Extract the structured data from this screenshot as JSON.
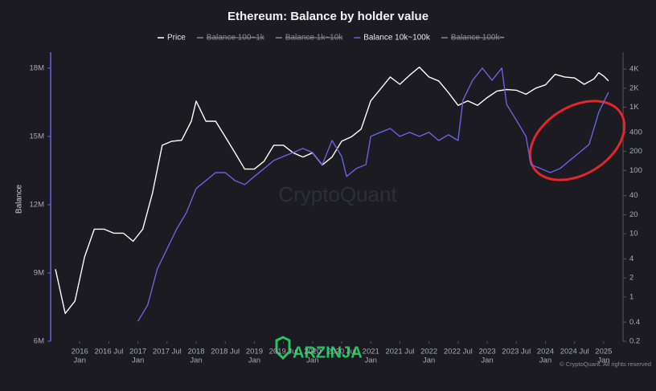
{
  "chart_data": {
    "type": "line",
    "title": "Ethereum: Balance by holder value",
    "y_label": "Balance",
    "watermark": "CryptoQuant",
    "logo_text": "ARZINJA",
    "copyright": "© CryptoQuant. All rights reserved",
    "xlim": [
      "2015-07",
      "2025-05"
    ],
    "xticks": [
      {
        "value": "2016-01",
        "label": "2016",
        "sublabel": "Jan"
      },
      {
        "value": "2016-07",
        "label": "2016 Jul"
      },
      {
        "value": "2017-01",
        "label": "2017",
        "sublabel": "Jan"
      },
      {
        "value": "2017-07",
        "label": "2017 Jul"
      },
      {
        "value": "2018-01",
        "label": "2018",
        "sublabel": "Jan"
      },
      {
        "value": "2018-07",
        "label": "2018 Jul"
      },
      {
        "value": "2019-01",
        "label": "2019",
        "sublabel": "Jan"
      },
      {
        "value": "2019-07",
        "label": "2019 Jul"
      },
      {
        "value": "2020-01",
        "label": "2020",
        "sublabel": "Jan"
      },
      {
        "value": "2020-07",
        "label": "2020 Jul"
      },
      {
        "value": "2021-01",
        "label": "2021",
        "sublabel": "Jan"
      },
      {
        "value": "2021-07",
        "label": "2021 Jul"
      },
      {
        "value": "2022-01",
        "label": "2022",
        "sublabel": "Jan"
      },
      {
        "value": "2022-07",
        "label": "2022 Jul"
      },
      {
        "value": "2023-01",
        "label": "2023",
        "sublabel": "Jan"
      },
      {
        "value": "2023-07",
        "label": "2023 Jul"
      },
      {
        "value": "2024-01",
        "label": "2024",
        "sublabel": "Jan"
      },
      {
        "value": "2024-07",
        "label": "2024 Jul"
      },
      {
        "value": "2025-01",
        "label": "2025",
        "sublabel": "Jan"
      }
    ],
    "ylim": [
      6000000,
      18700000
    ],
    "yticks": [
      {
        "value": 6000000,
        "label": "6M"
      },
      {
        "value": 9000000,
        "label": "9M"
      },
      {
        "value": 12000000,
        "label": "12M"
      },
      {
        "value": 15000000,
        "label": "15M"
      },
      {
        "value": 18000000,
        "label": "18M"
      }
    ],
    "y2lim": [
      0.2,
      7400
    ],
    "y2_log": true,
    "y2ticks": [
      0.2,
      0.4,
      1,
      2,
      4,
      10,
      20,
      40,
      100,
      200,
      400,
      {
        "value": 1000,
        "label": "1K"
      },
      {
        "value": 2000,
        "label": "2K"
      },
      {
        "value": 4000,
        "label": "4K"
      }
    ],
    "series": [
      {
        "name": "Price",
        "color": "#ffffff",
        "axis": "y2",
        "x": [
          "2015-08",
          "2015-10",
          "2015-12",
          "2016-02",
          "2016-04",
          "2016-06",
          "2016-08",
          "2016-10",
          "2016-12",
          "2017-02",
          "2017-04",
          "2017-06",
          "2017-08",
          "2017-10",
          "2017-12",
          "2018-01",
          "2018-03",
          "2018-05",
          "2018-07",
          "2018-09",
          "2018-11",
          "2019-01",
          "2019-03",
          "2019-05",
          "2019-07",
          "2019-09",
          "2019-11",
          "2020-01",
          "2020-03",
          "2020-05",
          "2020-07",
          "2020-09",
          "2020-11",
          "2021-01",
          "2021-03",
          "2021-05",
          "2021-07",
          "2021-09",
          "2021-11",
          "2022-01",
          "2022-03",
          "2022-05",
          "2022-07",
          "2022-09",
          "2022-11",
          "2023-01",
          "2023-03",
          "2023-05",
          "2023-07",
          "2023-09",
          "2023-11",
          "2024-01",
          "2024-03",
          "2024-05",
          "2024-07",
          "2024-09",
          "2024-11",
          "2024-12",
          "2025-01",
          "2025-02"
        ],
        "values": [
          2.75,
          0.55,
          0.86,
          4.3,
          11.8,
          11.8,
          10.2,
          10.2,
          7.6,
          11.8,
          44,
          250,
          290,
          300,
          600,
          1250,
          600,
          600,
          340,
          190,
          105,
          105,
          140,
          250,
          250,
          190,
          163,
          190,
          122,
          163,
          290,
          340,
          450,
          1260,
          1940,
          3000,
          2300,
          3200,
          4300,
          3000,
          2600,
          1700,
          1070,
          1260,
          1070,
          1420,
          1800,
          1900,
          1850,
          1600,
          2000,
          2250,
          3300,
          3000,
          2900,
          2300,
          2800,
          3500,
          3100,
          2600
        ]
      },
      {
        "name": "Balance 10k~100k",
        "color": "#6b62e0",
        "axis": "y",
        "x": [
          "2017-01",
          "2017-03",
          "2017-05",
          "2017-07",
          "2017-09",
          "2017-11",
          "2018-01",
          "2018-03",
          "2018-05",
          "2018-07",
          "2018-09",
          "2018-11",
          "2019-01",
          "2019-03",
          "2019-05",
          "2019-07",
          "2019-09",
          "2019-11",
          "2020-01",
          "2020-03",
          "2020-05",
          "2020-07",
          "2020-08",
          "2020-10",
          "2020-12",
          "2021-01",
          "2021-03",
          "2021-05",
          "2021-07",
          "2021-09",
          "2021-11",
          "2022-01",
          "2022-03",
          "2022-05",
          "2022-07",
          "2022-08",
          "2022-10",
          "2022-12",
          "2023-02",
          "2023-04",
          "2023-05",
          "2023-07",
          "2023-09",
          "2023-10",
          "2023-12",
          "2024-02",
          "2024-04",
          "2024-06",
          "2024-08",
          "2024-10",
          "2024-12",
          "2025-02"
        ],
        "values": [
          6880000,
          7590000,
          9180000,
          10060000,
          10940000,
          11650000,
          12710000,
          13060000,
          13410000,
          13410000,
          13060000,
          12880000,
          13240000,
          13590000,
          13940000,
          14120000,
          14290000,
          14470000,
          14290000,
          13760000,
          14820000,
          14120000,
          13240000,
          13590000,
          13760000,
          15000000,
          15180000,
          15350000,
          15000000,
          15180000,
          15000000,
          15180000,
          14820000,
          15070000,
          14820000,
          16590000,
          17470000,
          18000000,
          17470000,
          18000000,
          16410000,
          15710000,
          15000000,
          13760000,
          13590000,
          13410000,
          13590000,
          13940000,
          14290000,
          14650000,
          16060000,
          16940000
        ]
      }
    ],
    "hidden_series": [
      {
        "name": "Balance 100~1k",
        "color": "#8a8a94"
      },
      {
        "name": "Balance 1k~10k",
        "color": "#8a8a94"
      },
      {
        "name": "Balance 100k~",
        "color": "#8a8a94"
      }
    ]
  }
}
